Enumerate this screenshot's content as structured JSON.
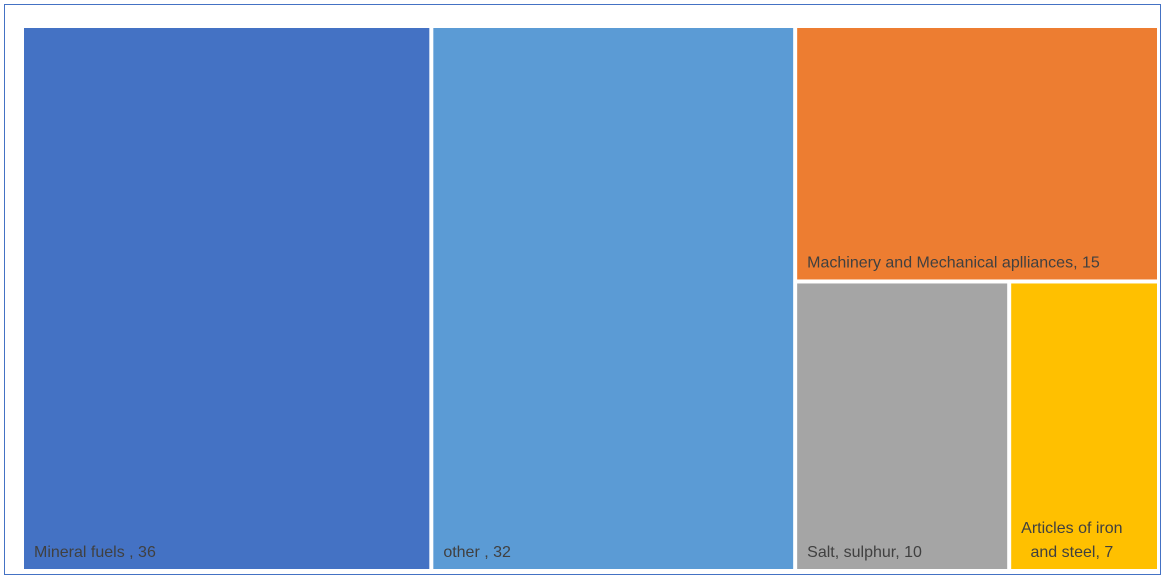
{
  "chart_data": {
    "type": "treemap",
    "labels": [
      "Mineral fuels , 36",
      "other , 32",
      "Machinery and Mechanical aplliances, 15",
      "Salt, sulphur, 10",
      "Articles of iron and steel, 7"
    ],
    "values": [
      36,
      32,
      15,
      10,
      7
    ],
    "colors": [
      "#4472c4",
      "#5b9bd5",
      "#ed7d31",
      "#a5a5a5",
      "#ffc000"
    ]
  }
}
